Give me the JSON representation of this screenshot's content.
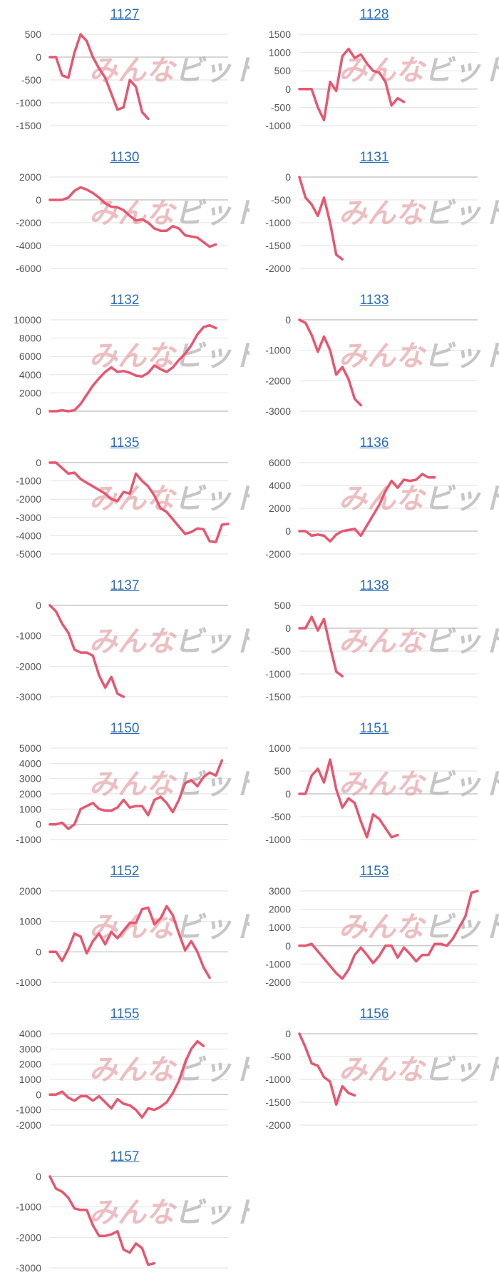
{
  "colors": {
    "series": "#e8566f",
    "title": "#2a6db8",
    "watermark_red": "#e6a3a8",
    "watermark_gray": "#b9b9b9"
  },
  "watermark": {
    "part1": "みんな",
    "part2": "ビット"
  },
  "chart_data": [
    {
      "type": "line",
      "title": "1127",
      "yticks": [
        500,
        0,
        -500,
        -1000,
        -1500
      ],
      "ylim": [
        -1500,
        500
      ],
      "grid": true,
      "y": [
        0,
        0,
        -400,
        -450,
        100,
        500,
        350,
        0,
        -250,
        -450,
        -800,
        -1150,
        -1100,
        -500,
        -650,
        -1200,
        -1350
      ]
    },
    {
      "type": "line",
      "title": "1128",
      "yticks": [
        1500,
        1000,
        500,
        0,
        -500,
        -1000
      ],
      "ylim": [
        -1000,
        1500
      ],
      "grid": true,
      "y": [
        0,
        0,
        0,
        -500,
        -850,
        200,
        -50,
        900,
        1100,
        850,
        950,
        700,
        500,
        450,
        200,
        -450,
        -250,
        -350
      ]
    },
    {
      "type": "line",
      "title": "1130",
      "yticks": [
        2000,
        0,
        -2000,
        -4000,
        -6000
      ],
      "ylim": [
        -6000,
        2000
      ],
      "grid": true,
      "y": [
        0,
        0,
        0,
        200,
        800,
        1100,
        900,
        600,
        200,
        -300,
        -600,
        -650,
        -900,
        -1400,
        -1800,
        -1700,
        -2000,
        -2500,
        -2700,
        -2700,
        -2300,
        -2500,
        -3100,
        -3200,
        -3300,
        -3700,
        -4100,
        -3900
      ]
    },
    {
      "type": "line",
      "title": "1131",
      "yticks": [
        0,
        -500,
        -1000,
        -1500,
        -2000
      ],
      "ylim": [
        -2000,
        0
      ],
      "grid": true,
      "y": [
        0,
        -450,
        -600,
        -850,
        -450,
        -1000,
        -1700,
        -1800
      ]
    },
    {
      "type": "line",
      "title": "1132",
      "yticks": [
        10000,
        8000,
        6000,
        4000,
        2000,
        0
      ],
      "ylim": [
        0,
        10000
      ],
      "grid": true,
      "y": [
        0,
        0,
        100,
        0,
        100,
        800,
        1800,
        2800,
        3600,
        4300,
        4800,
        4300,
        4400,
        4200,
        3900,
        3800,
        4200,
        5000,
        4600,
        4300,
        4800,
        5600,
        6300,
        7200,
        8400,
        9200,
        9400,
        9100
      ]
    },
    {
      "type": "line",
      "title": "1133",
      "yticks": [
        0,
        -1000,
        -2000,
        -3000
      ],
      "ylim": [
        -3000,
        0
      ],
      "grid": true,
      "y": [
        0,
        -100,
        -500,
        -1050,
        -550,
        -1000,
        -1800,
        -1550,
        -1950,
        -2600,
        -2800
      ]
    },
    {
      "type": "line",
      "title": "1135",
      "yticks": [
        0,
        -1000,
        -2000,
        -3000,
        -4000,
        -5000
      ],
      "ylim": [
        -5000,
        0
      ],
      "grid": true,
      "y": [
        0,
        0,
        -300,
        -600,
        -550,
        -900,
        -1100,
        -1300,
        -1500,
        -1700,
        -2000,
        -2100,
        -1600,
        -1700,
        -600,
        -1000,
        -1300,
        -1800,
        -2500,
        -2700,
        -3100,
        -3500,
        -3900,
        -3800,
        -3600,
        -3650,
        -4300,
        -4350,
        -3400,
        -3350
      ]
    },
    {
      "type": "line",
      "title": "1136",
      "yticks": [
        6000,
        4000,
        2000,
        0,
        -2000
      ],
      "ylim": [
        -2000,
        6000
      ],
      "grid": true,
      "y": [
        0,
        0,
        -400,
        -300,
        -400,
        -900,
        -300,
        0,
        100,
        200,
        -400,
        500,
        1400,
        2300,
        3500,
        4400,
        3800,
        4500,
        4400,
        4500,
        5000,
        4700,
        4700
      ]
    },
    {
      "type": "line",
      "title": "1137",
      "yticks": [
        0,
        -1000,
        -2000,
        -3000
      ],
      "ylim": [
        -3000,
        0
      ],
      "grid": true,
      "y": [
        0,
        -200,
        -600,
        -900,
        -1450,
        -1550,
        -1550,
        -1650,
        -2300,
        -2700,
        -2350,
        -2900,
        -3000
      ]
    },
    {
      "type": "line",
      "title": "1138",
      "yticks": [
        500,
        0,
        -500,
        -1000,
        -1500
      ],
      "ylim": [
        -1500,
        500
      ],
      "grid": true,
      "y": [
        0,
        0,
        250,
        -50,
        200,
        -400,
        -950,
        -1050
      ]
    },
    {
      "type": "line",
      "title": "1150",
      "yticks": [
        5000,
        4000,
        3000,
        2000,
        1000,
        0,
        -1000
      ],
      "ylim": [
        -1000,
        5000
      ],
      "grid": true,
      "y": [
        0,
        0,
        100,
        -300,
        0,
        1000,
        1200,
        1400,
        1000,
        900,
        900,
        1100,
        1600,
        1100,
        1200,
        1200,
        600,
        1600,
        1800,
        1400,
        800,
        1600,
        2700,
        2900,
        2500,
        3100,
        3400,
        3200,
        4200
      ]
    },
    {
      "type": "line",
      "title": "1151",
      "yticks": [
        1000,
        500,
        0,
        -500,
        -1000
      ],
      "ylim": [
        -1000,
        1000
      ],
      "grid": true,
      "y": [
        0,
        0,
        400,
        550,
        250,
        750,
        100,
        -300,
        -100,
        -200,
        -600,
        -950,
        -450,
        -550,
        -750,
        -950,
        -900
      ]
    },
    {
      "type": "line",
      "title": "1152",
      "yticks": [
        2000,
        1000,
        0,
        -1000
      ],
      "ylim": [
        -1000,
        2000
      ],
      "grid": true,
      "y": [
        0,
        0,
        -300,
        100,
        600,
        500,
        -50,
        350,
        600,
        250,
        650,
        450,
        700,
        950,
        950,
        1400,
        1450,
        900,
        1100,
        1500,
        1200,
        600,
        50,
        350,
        0,
        -500,
        -850
      ]
    },
    {
      "type": "line",
      "title": "1153",
      "yticks": [
        3000,
        2000,
        1000,
        0,
        -1000,
        -2000
      ],
      "ylim": [
        -2000,
        3000
      ],
      "grid": true,
      "y": [
        0,
        0,
        100,
        -300,
        -700,
        -1100,
        -1500,
        -1800,
        -1300,
        -500,
        -100,
        -500,
        -950,
        -550,
        0,
        0,
        -650,
        -100,
        -450,
        -850,
        -500,
        -500,
        100,
        100,
        0,
        400,
        1000,
        1600,
        2900,
        3000
      ]
    },
    {
      "type": "line",
      "title": "1155",
      "yticks": [
        4000,
        3000,
        2000,
        1000,
        0,
        -1000,
        -2000
      ],
      "ylim": [
        -2000,
        4000
      ],
      "grid": true,
      "y": [
        0,
        0,
        200,
        -200,
        -400,
        -100,
        -100,
        -400,
        -100,
        -500,
        -900,
        -300,
        -600,
        -700,
        -1000,
        -1500,
        -900,
        -1000,
        -800,
        -500,
        100,
        900,
        2100,
        3000,
        3500,
        3200
      ]
    },
    {
      "type": "line",
      "title": "1156",
      "yticks": [
        0,
        -500,
        -1000,
        -1500,
        -2000
      ],
      "ylim": [
        -2000,
        0
      ],
      "grid": true,
      "y": [
        0,
        -300,
        -650,
        -700,
        -950,
        -1050,
        -1550,
        -1150,
        -1300,
        -1350
      ]
    },
    {
      "type": "line",
      "title": "1157",
      "yticks": [
        0,
        -1000,
        -2000,
        -3000
      ],
      "ylim": [
        -3000,
        0
      ],
      "grid": true,
      "y": [
        0,
        -400,
        -500,
        -700,
        -1050,
        -1100,
        -1100,
        -1600,
        -1950,
        -1950,
        -1900,
        -1800,
        -2400,
        -2500,
        -2200,
        -2350,
        -2900,
        -2850
      ]
    }
  ]
}
